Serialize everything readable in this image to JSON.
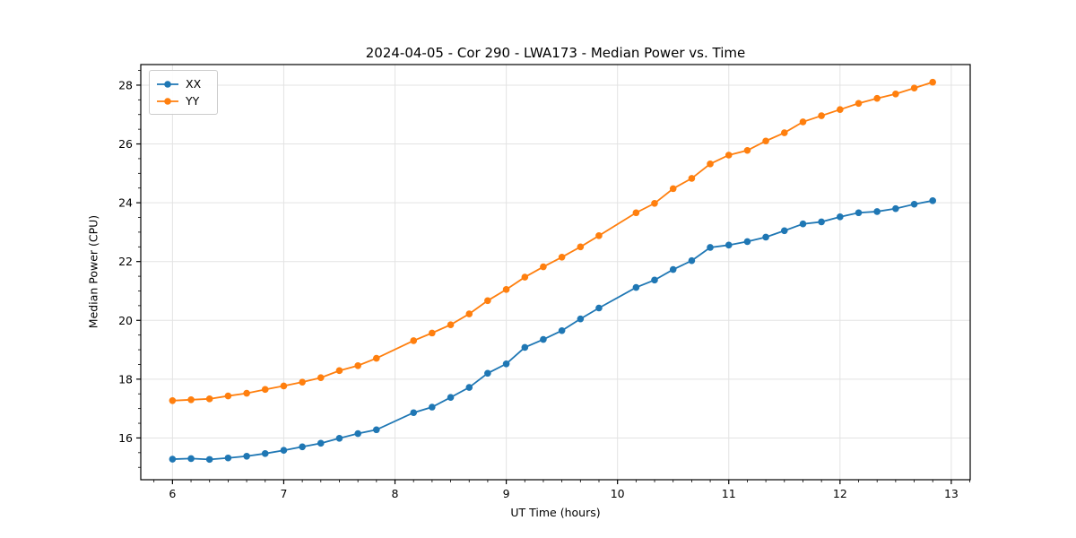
{
  "chart_data": {
    "type": "line",
    "title": "2024-04-05 - Cor 290 - LWA173 - Median Power vs. Time",
    "xlabel": "UT Time (hours)",
    "ylabel": "Median Power (CPU)",
    "xlim": [
      5.715,
      13.17
    ],
    "ylim": [
      14.58,
      28.7
    ],
    "xticks": [
      6,
      7,
      8,
      9,
      10,
      11,
      12,
      13
    ],
    "yticks": [
      16,
      18,
      20,
      22,
      24,
      26,
      28
    ],
    "minor_xtick_step": 0.1666667,
    "minor_ytick_step": 0.5,
    "grid": "major-both",
    "grid_color": "#e3e3e3",
    "background": "#ffffff",
    "legend_position": "upper-left",
    "x": [
      6.0,
      6.167,
      6.333,
      6.5,
      6.667,
      6.833,
      7.0,
      7.167,
      7.333,
      7.5,
      7.667,
      7.833,
      8.167,
      8.333,
      8.5,
      8.667,
      8.833,
      9.0,
      9.167,
      9.333,
      9.5,
      9.667,
      9.833,
      10.167,
      10.333,
      10.5,
      10.667,
      10.833,
      11.0,
      11.167,
      11.333,
      11.5,
      11.667,
      11.833,
      12.0,
      12.167,
      12.333,
      12.5,
      12.667,
      12.833
    ],
    "series": [
      {
        "name": "XX",
        "color": "#1f77b4",
        "values": [
          15.28,
          15.3,
          15.27,
          15.32,
          15.38,
          15.47,
          15.58,
          15.7,
          15.82,
          15.99,
          16.15,
          16.28,
          16.86,
          17.05,
          17.38,
          17.72,
          18.2,
          18.52,
          19.08,
          19.35,
          19.65,
          20.05,
          20.42,
          21.12,
          21.37,
          21.73,
          22.03,
          22.48,
          22.56,
          22.68,
          22.83,
          23.05,
          23.28,
          23.35,
          23.52,
          23.66,
          23.7,
          23.8,
          23.95,
          24.07
        ]
      },
      {
        "name": "YY",
        "color": "#ff7f0e",
        "values": [
          17.27,
          17.3,
          17.33,
          17.43,
          17.52,
          17.65,
          17.77,
          17.9,
          18.05,
          18.29,
          18.46,
          18.71,
          19.31,
          19.57,
          19.85,
          20.22,
          20.67,
          21.05,
          21.47,
          21.82,
          22.15,
          22.5,
          22.88,
          23.66,
          23.98,
          24.48,
          24.83,
          25.32,
          25.62,
          25.78,
          26.1,
          26.38,
          26.75,
          26.96,
          27.17,
          27.38,
          27.55,
          27.7,
          27.9,
          28.1
        ]
      }
    ]
  }
}
